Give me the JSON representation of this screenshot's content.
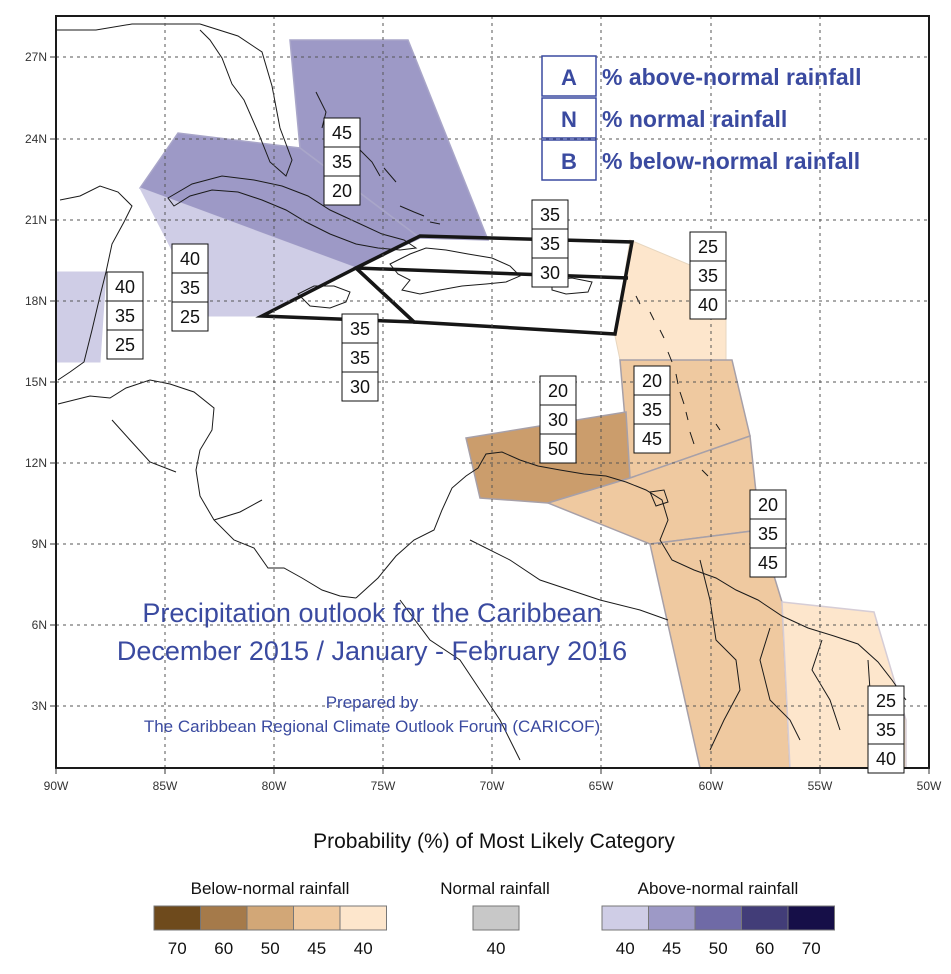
{
  "map": {
    "title_line1": "Precipitation outlook for the Caribbean",
    "title_line2": "December 2015 / January - February 2016",
    "prepared_line1": "Prepared by",
    "prepared_line2": "The Caribbean Regional Climate Outlook Forum (CARICOF)",
    "lat_labels": [
      "27N",
      "24N",
      "21N",
      "18N",
      "15N",
      "12N",
      "9N",
      "6N",
      "3N"
    ],
    "lon_labels": [
      "90W",
      "85W",
      "80W",
      "75W",
      "70W",
      "65W",
      "60W",
      "55W",
      "50W"
    ],
    "legend_key": [
      {
        "letter": "A",
        "text": "% above-normal rainfall"
      },
      {
        "letter": "N",
        "text": "% normal rainfall"
      },
      {
        "letter": "B",
        "text": "% below-normal rainfall"
      }
    ],
    "regions": [
      {
        "name": "bahamas",
        "values": [
          "45",
          "35",
          "20"
        ],
        "fill": "#9d99c6"
      },
      {
        "name": "cuba-west",
        "values": [
          "40",
          "35",
          "25"
        ],
        "fill": "#cfcde6"
      },
      {
        "name": "belize",
        "values": [
          "40",
          "35",
          "25"
        ],
        "fill": "#cfcde6"
      },
      {
        "name": "jamaica",
        "values": [
          "35",
          "35",
          "30"
        ],
        "fill": "none"
      },
      {
        "name": "hispaniola-pr",
        "values": [
          "35",
          "35",
          "30"
        ],
        "fill": "none"
      },
      {
        "name": "leeward-islands",
        "values": [
          "25",
          "35",
          "40"
        ],
        "fill": "#fde6cc"
      },
      {
        "name": "windward-islands",
        "values": [
          "20",
          "35",
          "45"
        ],
        "fill": "#efc9a0"
      },
      {
        "name": "abc-islands",
        "values": [
          "20",
          "30",
          "50"
        ],
        "fill": "#cb9d6c"
      },
      {
        "name": "trinidad-guyana",
        "values": [
          "20",
          "35",
          "45"
        ],
        "fill": "#efc9a0"
      },
      {
        "name": "french-guiana",
        "values": [
          "25",
          "35",
          "40"
        ],
        "fill": "#fde6cc"
      }
    ]
  },
  "colorbar": {
    "title": "Probability (%) of Most Likely Category",
    "below": {
      "label": "Below-normal rainfall",
      "colors": [
        "#6e4a1c",
        "#a57a4a",
        "#d2a777",
        "#efc9a0",
        "#fde6cc"
      ],
      "ticks": [
        "70",
        "60",
        "50",
        "45",
        "40"
      ]
    },
    "normal": {
      "label": "Normal rainfall",
      "colors": [
        "#c8c8c8"
      ],
      "ticks": [
        "40"
      ]
    },
    "above": {
      "label": "Above-normal rainfall",
      "colors": [
        "#cfcde6",
        "#9d99c6",
        "#6f6aa6",
        "#423d78",
        "#160f48"
      ],
      "ticks": [
        "40",
        "45",
        "50",
        "60",
        "70"
      ]
    }
  }
}
